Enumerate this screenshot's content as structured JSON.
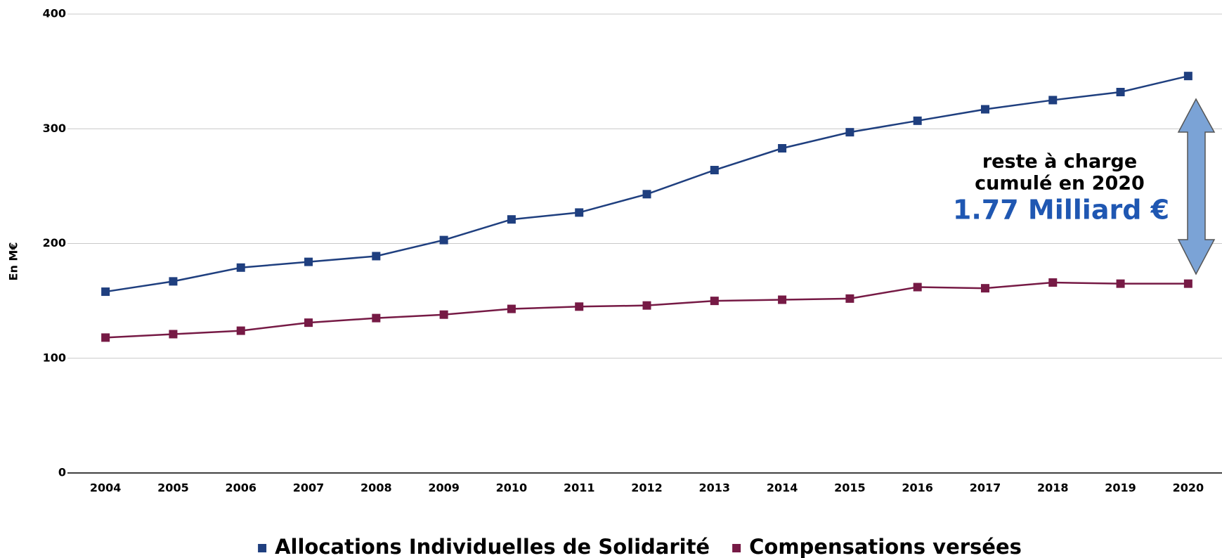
{
  "chart_data": {
    "type": "line",
    "ylabel": "En M€",
    "categories": [
      "2004",
      "2005",
      "2006",
      "2007",
      "2008",
      "2009",
      "2010",
      "2011",
      "2012",
      "2013",
      "2014",
      "2015",
      "2016",
      "2017",
      "2018",
      "2019",
      "2020"
    ],
    "series": [
      {
        "name": "Allocations Individuelles de Solidarité",
        "color": "#1f3f7f",
        "values": [
          158,
          167,
          179,
          184,
          189,
          203,
          221,
          227,
          243,
          264,
          283,
          297,
          307,
          317,
          325,
          332,
          346
        ]
      },
      {
        "name": "Compensations versées",
        "color": "#761a45",
        "values": [
          118,
          121,
          124,
          131,
          135,
          138,
          143,
          145,
          146,
          150,
          151,
          152,
          162,
          161,
          166,
          165,
          165
        ]
      }
    ],
    "ylim": [
      0,
      400
    ],
    "yticks": [
      0,
      100,
      200,
      300,
      400
    ],
    "grid": true,
    "legend": "bottom",
    "annotations": [
      "reste à charge",
      "cumulé en 2020",
      "1.77 Milliard €"
    ]
  }
}
